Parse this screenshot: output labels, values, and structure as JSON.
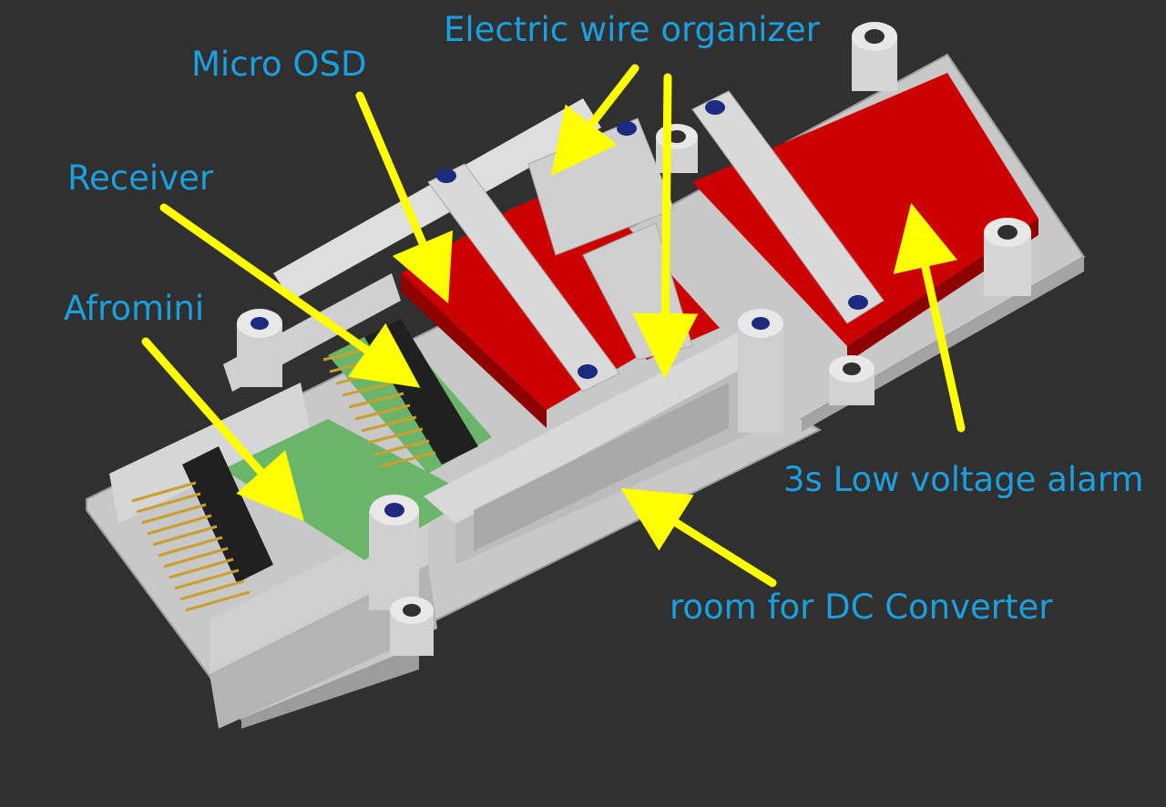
{
  "labels": {
    "micro_osd": "Micro OSD",
    "wire_organizer": "Electric wire organizer",
    "receiver": "Receiver",
    "afromini": "Afromini",
    "low_voltage_alarm": "3s Low voltage alarm",
    "dc_converter": "room for DC Converter"
  },
  "colors": {
    "background": "#303030",
    "label_text": "#1aa0e0",
    "arrow": "#ffff00",
    "plastic_frame": "#d4d4d4",
    "red_module": "#cc0000",
    "pcb_green": "#6ab56a",
    "pins": "#c8a030",
    "screw_holes": "#1e2a80"
  }
}
